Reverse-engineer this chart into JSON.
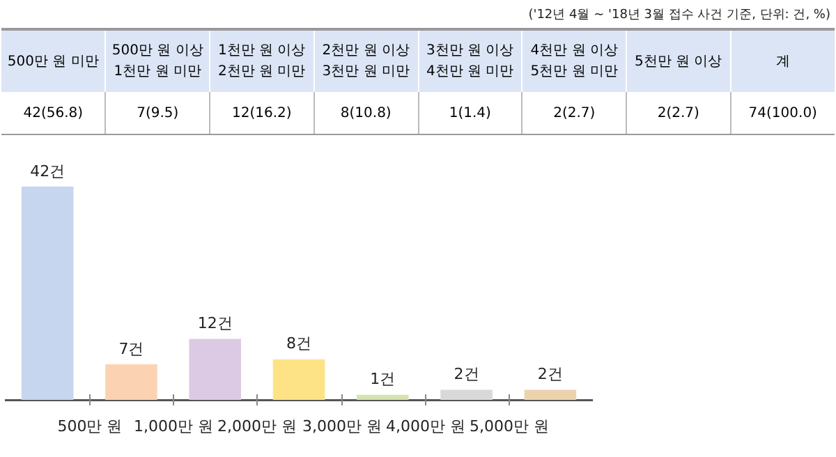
{
  "chart_data": {
    "type": "bar",
    "categories": [
      null,
      null,
      null,
      null,
      null,
      null,
      null
    ],
    "values": [
      42,
      7,
      12,
      8,
      1,
      2,
      2
    ],
    "colors": [
      "#c6d6ee",
      "#fbd3b2",
      "#dccae4",
      "#fde385",
      "#d5e3ae",
      "#d9d9d9",
      "#ecd3ae"
    ],
    "value_labels": [
      "42건",
      "7건",
      "12건",
      "8건",
      "1건",
      "2건",
      "2건"
    ],
    "annotations": [
      "('12년 4월 ~ '18년 3월 접수 사건 기준, 단위: 건, %)",
      "500만 원",
      "1,000만 원",
      "2,000만 원",
      "3,000만 원",
      "4,000만 원",
      "5,000만 원",
      "500만 원 미만",
      "500만 원 이상 1천만 원 미만",
      "1천만 원 이상 2천만 원 미만",
      "2천만 원 이상 3천만 원 미만",
      "3천만 원 이상 4천만 원 미만",
      "4천만 원 이상 5천만 원 미만",
      "5천만 원 이상",
      "계",
      "42(56.8)",
      "7(9.5)",
      "12(16.2)",
      "8(10.8)",
      "1(1.4)",
      "2(2.7)",
      "2(2.7)",
      "74(100.0)"
    ],
    "legend": false,
    "grid": false
  }
}
